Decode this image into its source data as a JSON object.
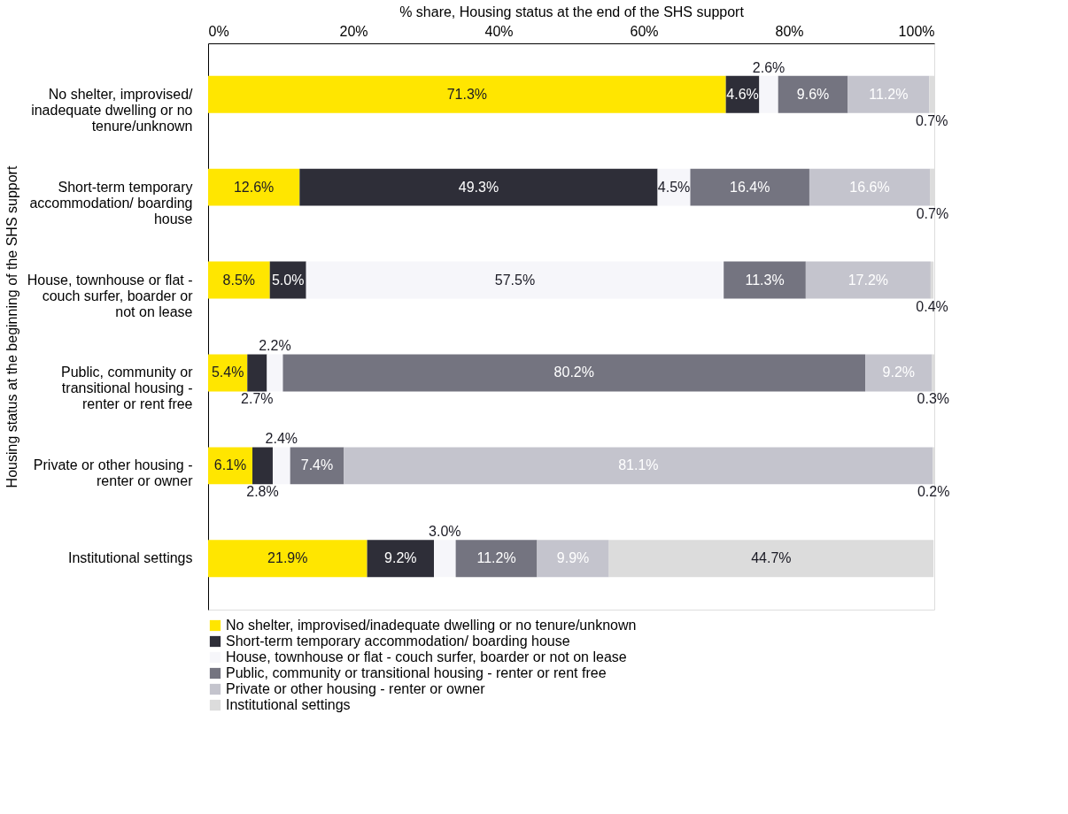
{
  "chart_data": {
    "type": "bar",
    "orientation": "horizontal",
    "stacked": true,
    "xlabel": "% share, Housing status at the end of the SHS support",
    "ylabel": "Housing status at the beginning of the SHS support",
    "categories": [
      "No shelter, improvised/ inadequate dwelling or no tenure/unknown",
      "Short-term temporary accommodation/ boarding house",
      "House, townhouse or flat - couch surfer, boarder or not on lease",
      "Public, community or transitional housing  - renter or rent free",
      "Private or other housing - renter or owner",
      "Institutional settings"
    ],
    "series": [
      {
        "name": "No shelter, improvised/inadequate dwelling or no tenure/unknown",
        "color": "#ffe600",
        "values": [
          71.3,
          12.6,
          8.5,
          5.4,
          6.1,
          21.9
        ],
        "value_labels": [
          "71.3%",
          "12.6%",
          "8.5%",
          "5.4%",
          "6.1%",
          "21.9%"
        ]
      },
      {
        "name": "Short-term temporary accommodation/  boarding house",
        "color": "#2e2e38",
        "values": [
          4.6,
          49.3,
          5.0,
          2.7,
          2.8,
          9.2
        ],
        "value_labels": [
          "4.6%",
          "49.3%",
          "5.0%",
          "2.7%",
          "2.8%",
          "9.2%"
        ]
      },
      {
        "name": "House, townhouse or flat - couch surfer, boarder or not on lease",
        "color": "#f6f6fa",
        "values": [
          2.6,
          4.5,
          57.5,
          2.2,
          2.4,
          3.0
        ],
        "value_labels": [
          "2.6%",
          "4.5%",
          "57.5%",
          "2.2%",
          "2.4%",
          "3.0%"
        ]
      },
      {
        "name": "Public, community or transitional housing - renter or rent free",
        "color": "#747480",
        "values": [
          9.6,
          16.4,
          11.3,
          80.2,
          7.4,
          11.2
        ],
        "value_labels": [
          "9.6%",
          "16.4%",
          "11.3%",
          "80.2%",
          "7.4%",
          "11.2%"
        ]
      },
      {
        "name": "Private or other housing - renter or owner",
        "color": "#c4c4cd",
        "values": [
          11.2,
          16.6,
          17.2,
          9.2,
          81.1,
          9.9
        ],
        "value_labels": [
          "11.2%",
          "16.6%",
          "17.2%",
          "9.2%",
          "81.1%",
          "9.9%"
        ]
      },
      {
        "name": "Institutional settings",
        "color": "#dcdcdc",
        "values": [
          0.7,
          0.7,
          0.4,
          0.3,
          0.2,
          44.7
        ],
        "value_labels": [
          "0.7%",
          "0.7%",
          "0.4%",
          "0.3%",
          "0.2%",
          "44.7%"
        ]
      }
    ],
    "xlim": [
      0,
      100
    ],
    "xticks": [
      {
        "value": 0,
        "label": "0%"
      },
      {
        "value": 20,
        "label": "20%"
      },
      {
        "value": 40,
        "label": "40%"
      },
      {
        "value": 60,
        "label": "60%"
      },
      {
        "value": 80,
        "label": "80%"
      },
      {
        "value": 100,
        "label": "100%"
      }
    ],
    "grid": false,
    "legend": "bottom"
  }
}
